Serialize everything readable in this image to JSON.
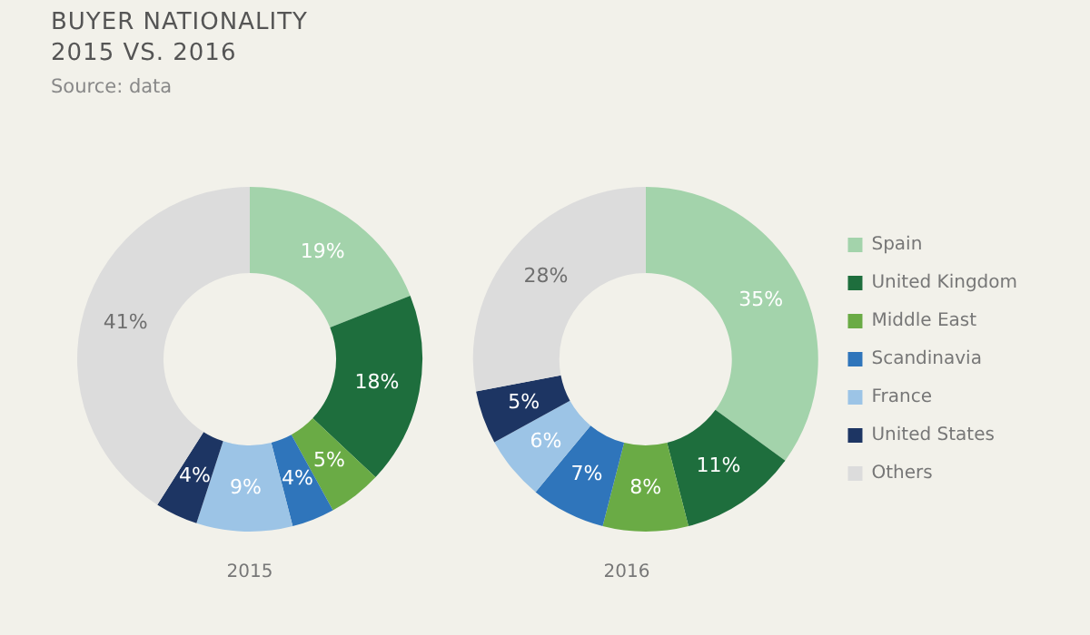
{
  "chart_data": [
    {
      "type": "donut",
      "title": "BUYER NATIONALITY\n2015 VS. 2016",
      "annotations": [
        "Source: data"
      ],
      "xlabel": "2015",
      "legend": false,
      "categories": [
        null,
        null,
        null,
        null,
        null,
        null,
        null
      ],
      "values": [
        19,
        18,
        5,
        4,
        9,
        4,
        41
      ],
      "value_labels": [
        "19%",
        "18%",
        "5%",
        "4%",
        "9%",
        "4%",
        "41%"
      ],
      "colors": [
        "#a3d3ab",
        "#1e6e3d",
        "#6aab45",
        "#2f75bb",
        "#9cc4e6",
        "#1d3563",
        "#dcdcdc"
      ]
    },
    {
      "type": "donut",
      "xlabel": "2016",
      "legend": "right",
      "categories": [
        "Spain",
        "United Kingdom",
        "Middle East",
        "Scandinavia",
        "France",
        "United States",
        "Others"
      ],
      "values": [
        35,
        11,
        8,
        7,
        6,
        5,
        28
      ],
      "value_labels": [
        "35%",
        "11%",
        "8%",
        "7%",
        "6%",
        "5%",
        "28%"
      ],
      "colors": [
        "#a3d3ab",
        "#1e6e3d",
        "#6aab45",
        "#2f75bb",
        "#9cc4e6",
        "#1d3563",
        "#dcdcdc"
      ]
    }
  ]
}
